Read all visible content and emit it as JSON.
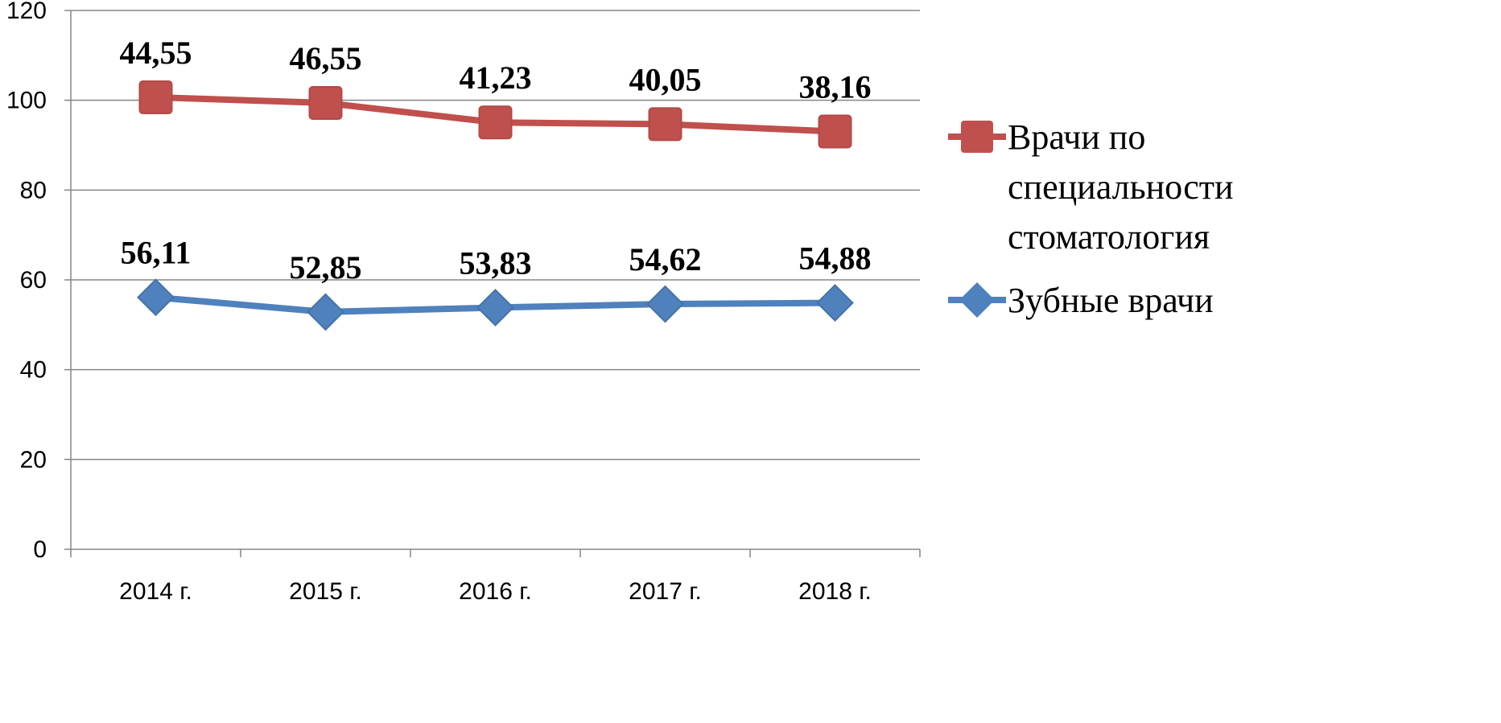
{
  "chart_data": {
    "type": "line",
    "stacked": true,
    "title": "",
    "xlabel": "",
    "ylabel": "",
    "categories": [
      "2014 г.",
      "2015 г.",
      "2016 г.",
      "2017 г.",
      "2018 г."
    ],
    "ylim": [
      0,
      120
    ],
    "yticks": [
      0,
      20,
      40,
      60,
      80,
      100,
      120
    ],
    "grid": true,
    "legend_position": "right",
    "series": [
      {
        "name": "Зубные врачи",
        "values": [
          56.11,
          52.85,
          53.83,
          54.62,
          54.88
        ],
        "labels": [
          "56,11",
          "52,85",
          "53,83",
          "54,62",
          "54,88"
        ],
        "color": "#4F81BD",
        "marker": "diamond"
      },
      {
        "name": "Врачи по специальности стоматология",
        "legend_lines": [
          "Врачи по",
          "специальности",
          "стоматология"
        ],
        "values": [
          44.55,
          46.55,
          41.23,
          40.05,
          38.16
        ],
        "labels": [
          "44,55",
          "46,55",
          "41,23",
          "40,05",
          "38,16"
        ],
        "color": "#C0504D",
        "marker": "square"
      }
    ]
  }
}
